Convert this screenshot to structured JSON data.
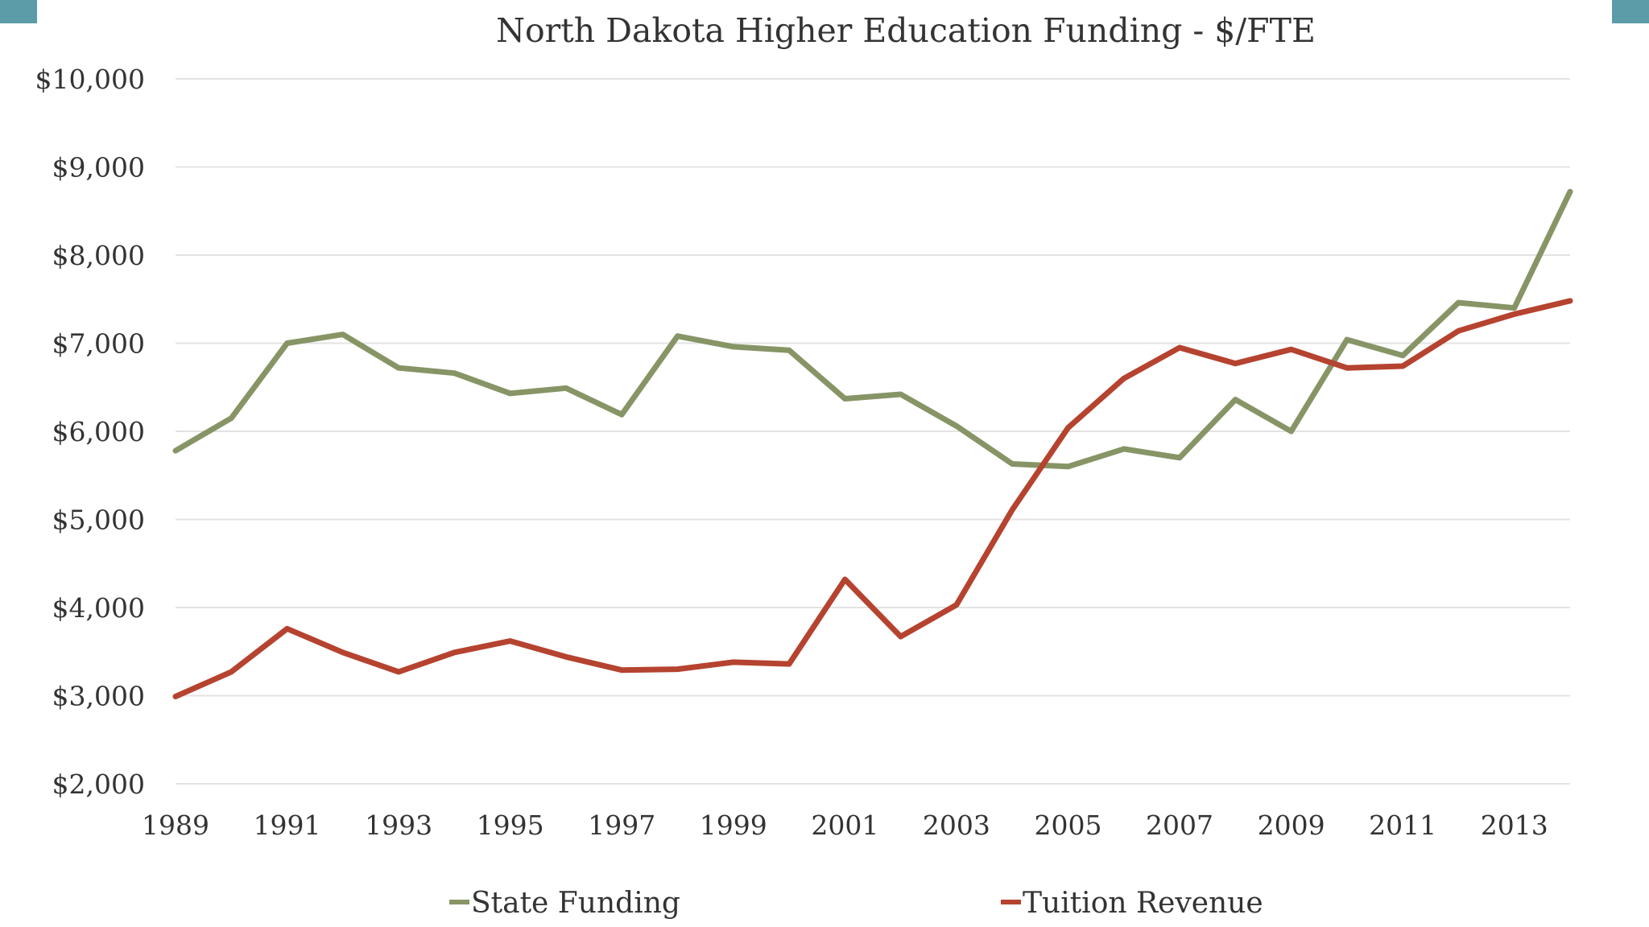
{
  "colors": {
    "accent": "#5b9ca8",
    "state": "#879566",
    "tuition": "#b5432f",
    "grid": "#e3e3e3",
    "text": "#333333"
  },
  "chart_data": {
    "type": "line",
    "title": "North Dakota Higher Education Funding - $/FTE",
    "xlabel": "",
    "ylabel": "",
    "x": [
      1989,
      1990,
      1991,
      1992,
      1993,
      1994,
      1995,
      1996,
      1997,
      1998,
      1999,
      2000,
      2001,
      2002,
      2003,
      2004,
      2005,
      2006,
      2007,
      2008,
      2009,
      2010,
      2011,
      2012,
      2013,
      2014
    ],
    "xlim": [
      1989,
      2014
    ],
    "ylim": [
      2000,
      10000
    ],
    "grid": true,
    "legend_position": "bottom",
    "x_tick_labels": [
      "1989",
      "1991",
      "1993",
      "1995",
      "1997",
      "1999",
      "2001",
      "2003",
      "2005",
      "2007",
      "2009",
      "2011",
      "2013"
    ],
    "x_tick_values": [
      1989,
      1991,
      1993,
      1995,
      1997,
      1999,
      2001,
      2003,
      2005,
      2007,
      2009,
      2011,
      2013
    ],
    "y_tick_labels": [
      "$10,000",
      "$9,000",
      "$8,000",
      "$7,000",
      "$6,000",
      "$5,000",
      "$4,000",
      "$3,000",
      "$2,000"
    ],
    "y_tick_values": [
      10000,
      9000,
      8000,
      7000,
      6000,
      5000,
      4000,
      3000,
      2000
    ],
    "series": [
      {
        "name": "State Funding",
        "color": "#879566",
        "values": [
          5780,
          6150,
          7000,
          7100,
          6720,
          6660,
          6430,
          6490,
          6190,
          7080,
          6960,
          6920,
          6370,
          6420,
          6060,
          5630,
          5600,
          5800,
          5700,
          6360,
          6000,
          7040,
          6860,
          7460,
          7400,
          8720
        ]
      },
      {
        "name": "Tuition Revenue",
        "color": "#b5432f",
        "values": [
          2990,
          3270,
          3760,
          3490,
          3270,
          3490,
          3620,
          3440,
          3290,
          3300,
          3380,
          3360,
          4320,
          3670,
          4030,
          5110,
          6040,
          6600,
          6950,
          6770,
          6930,
          6720,
          6740,
          7140,
          7330,
          7480
        ]
      }
    ]
  }
}
